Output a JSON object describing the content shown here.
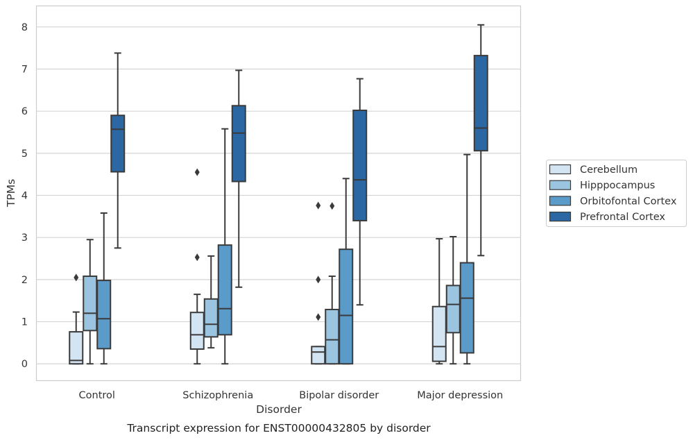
{
  "chart_data": {
    "type": "box",
    "title": "",
    "caption": "Transcript expression for ENST00000432805 by disorder",
    "xlabel": "Disorder",
    "ylabel": "TPMs",
    "ylim": [
      -0.4,
      8.5
    ],
    "yticks": [
      0,
      1,
      2,
      3,
      4,
      5,
      6,
      7,
      8
    ],
    "grid": "horizontal",
    "legend_position": "right",
    "categories": [
      "Control",
      "Schizophrenia",
      "Bipolar disorder",
      "Major depression"
    ],
    "series": [
      {
        "name": "Cerebellum",
        "color": "#d3e4f3",
        "boxes": [
          {
            "whisker_low": 0.0,
            "q1": 0.0,
            "median": 0.08,
            "q3": 0.76,
            "whisker_high": 1.23,
            "outliers": [
              2.05
            ]
          },
          {
            "whisker_low": 0.0,
            "q1": 0.35,
            "median": 0.69,
            "q3": 1.22,
            "whisker_high": 1.65,
            "outliers": [
              2.53,
              4.55
            ]
          },
          {
            "whisker_low": 0.0,
            "q1": 0.0,
            "median": 0.28,
            "q3": 0.41,
            "whisker_high": 0.41,
            "outliers": [
              1.11,
              2.0,
              3.76
            ]
          },
          {
            "whisker_low": 0.0,
            "q1": 0.06,
            "median": 0.41,
            "q3": 1.36,
            "whisker_high": 2.97,
            "outliers": []
          }
        ]
      },
      {
        "name": "Hipppocampus",
        "color": "#9ac4e0",
        "boxes": [
          {
            "whisker_low": 0.0,
            "q1": 0.79,
            "median": 1.2,
            "q3": 2.08,
            "whisker_high": 2.95,
            "outliers": []
          },
          {
            "whisker_low": 0.38,
            "q1": 0.64,
            "median": 0.94,
            "q3": 1.54,
            "whisker_high": 2.56,
            "outliers": []
          },
          {
            "whisker_low": 0.0,
            "q1": 0.0,
            "median": 0.57,
            "q3": 1.29,
            "whisker_high": 2.08,
            "outliers": [
              3.75
            ]
          },
          {
            "whisker_low": 0.0,
            "q1": 0.74,
            "median": 1.41,
            "q3": 1.86,
            "whisker_high": 3.02,
            "outliers": []
          }
        ]
      },
      {
        "name": "Orbitofontal Cortex",
        "color": "#5b9bc9",
        "boxes": [
          {
            "whisker_low": 0.0,
            "q1": 0.36,
            "median": 1.07,
            "q3": 1.98,
            "whisker_high": 3.58,
            "outliers": []
          },
          {
            "whisker_low": 0.0,
            "q1": 0.69,
            "median": 1.31,
            "q3": 2.82,
            "whisker_high": 5.58,
            "outliers": []
          },
          {
            "whisker_low": 0.0,
            "q1": 0.0,
            "median": 1.15,
            "q3": 2.72,
            "whisker_high": 4.4,
            "outliers": []
          },
          {
            "whisker_low": 0.0,
            "q1": 0.26,
            "median": 1.56,
            "q3": 2.4,
            "whisker_high": 4.97,
            "outliers": []
          }
        ]
      },
      {
        "name": "Prefrontal Cortex",
        "color": "#2b67a2",
        "boxes": [
          {
            "whisker_low": 2.75,
            "q1": 4.56,
            "median": 5.57,
            "q3": 5.9,
            "whisker_high": 7.38,
            "outliers": []
          },
          {
            "whisker_low": 1.82,
            "q1": 4.33,
            "median": 5.48,
            "q3": 6.13,
            "whisker_high": 6.97,
            "outliers": []
          },
          {
            "whisker_low": 1.4,
            "q1": 3.4,
            "median": 4.37,
            "q3": 6.02,
            "whisker_high": 6.77,
            "outliers": []
          },
          {
            "whisker_low": 2.57,
            "q1": 5.06,
            "median": 5.6,
            "q3": 7.32,
            "whisker_high": 8.05,
            "outliers": []
          }
        ]
      }
    ]
  }
}
